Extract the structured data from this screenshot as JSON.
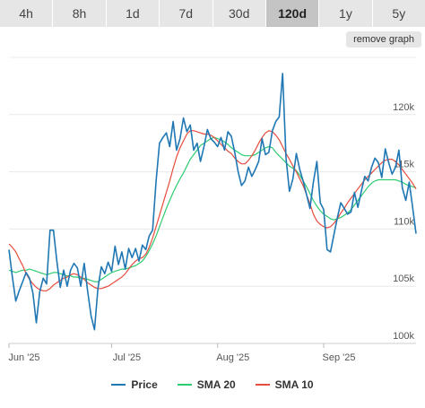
{
  "range_tabs": [
    {
      "label": "4h",
      "active": false
    },
    {
      "label": "8h",
      "active": false
    },
    {
      "label": "1d",
      "active": false
    },
    {
      "label": "7d",
      "active": false
    },
    {
      "label": "30d",
      "active": false
    },
    {
      "label": "120d",
      "active": true
    },
    {
      "label": "1y",
      "active": false
    },
    {
      "label": "5y",
      "active": false
    }
  ],
  "remove_graph_label": "remove graph",
  "legend": [
    {
      "label": "Price",
      "color": "#1f77b4"
    },
    {
      "label": "SMA 20",
      "color": "#2ecc71"
    },
    {
      "label": "SMA 10",
      "color": "#e74c3c"
    }
  ],
  "chart_data": {
    "type": "line",
    "x": [
      0,
      1,
      2,
      3,
      4,
      5,
      6,
      7,
      8,
      9,
      10,
      11,
      12,
      13,
      14,
      15,
      16,
      17,
      18,
      19,
      20,
      21,
      22,
      23,
      24,
      25,
      26,
      27,
      28,
      29,
      30,
      31,
      32,
      33,
      34,
      35,
      36,
      37,
      38,
      39,
      40,
      41,
      42,
      43,
      44,
      45,
      46,
      47,
      48,
      49,
      50,
      51,
      52,
      53,
      54,
      55,
      56,
      57,
      58,
      59,
      60,
      61,
      62,
      63,
      64,
      65,
      66,
      67,
      68,
      69,
      70,
      71,
      72,
      73,
      74,
      75,
      76,
      77,
      78,
      79,
      80,
      81,
      82,
      83,
      84,
      85,
      86,
      87,
      88,
      89,
      90,
      91,
      92,
      93,
      94,
      95,
      96,
      97,
      98,
      99,
      100,
      101,
      102,
      103,
      104,
      105,
      106,
      107,
      108,
      109,
      110,
      111,
      112,
      113,
      114,
      115,
      116,
      117,
      118,
      119
    ],
    "x_ticks": [
      {
        "x": 0,
        "label": "Jun '25"
      },
      {
        "x": 30,
        "label": "Jul '25"
      },
      {
        "x": 61,
        "label": "Aug '25"
      },
      {
        "x": 92,
        "label": "Sep '25"
      }
    ],
    "y_ticks": [
      {
        "value": 100000,
        "label": "100k"
      },
      {
        "value": 105000,
        "label": "105k"
      },
      {
        "value": 110000,
        "label": "110k"
      },
      {
        "value": 115000,
        "label": "115k"
      },
      {
        "value": 120000,
        "label": "120k"
      }
    ],
    "ylim": [
      100000,
      125000
    ],
    "xlim": [
      0,
      119
    ],
    "grid": true,
    "legend_position": "bottom",
    "series": [
      {
        "name": "Price",
        "color": "#1f77b4",
        "values": [
          108200,
          105800,
          103700,
          104600,
          105400,
          106200,
          105700,
          104400,
          101800,
          104500,
          105700,
          105200,
          109900,
          109900,
          107200,
          104900,
          106400,
          105000,
          106400,
          107000,
          106600,
          105000,
          107000,
          104600,
          102400,
          101200,
          104800,
          106700,
          106100,
          107100,
          106300,
          108500,
          106900,
          108000,
          106500,
          108300,
          107500,
          108300,
          107200,
          108600,
          108200,
          109400,
          109900,
          114200,
          117500,
          118000,
          118400,
          117200,
          119400,
          116900,
          117900,
          119700,
          118500,
          119100,
          116900,
          117500,
          115900,
          117200,
          118700,
          117900,
          117600,
          117200,
          118000,
          116900,
          118500,
          118100,
          116700,
          115000,
          113800,
          114200,
          115400,
          114600,
          115200,
          115900,
          117900,
          116500,
          116700,
          118600,
          119400,
          119800,
          123600,
          116200,
          113300,
          114400,
          116600,
          115200,
          114200,
          113000,
          111800,
          114100,
          115900,
          112300,
          111700,
          108200,
          108000,
          109500,
          111000,
          112300,
          111800,
          111300,
          111500,
          113200,
          111900,
          113300,
          114600,
          114200,
          115400,
          116200,
          115800,
          114500,
          117000,
          115800,
          114800,
          115400,
          116900,
          113600,
          112500,
          114100,
          111900,
          109600
        ]
      },
      {
        "name": "SMA 20",
        "color": "#2ecc71",
        "values": [
          106400,
          106300,
          106200,
          106300,
          106400,
          106400,
          106500,
          106400,
          106300,
          106200,
          106100,
          106000,
          106100,
          106200,
          106200,
          106100,
          106000,
          105900,
          105900,
          105800,
          105800,
          105700,
          105700,
          105600,
          105500,
          105400,
          105400,
          105600,
          105800,
          106000,
          106200,
          106300,
          106400,
          106500,
          106500,
          106600,
          106700,
          106800,
          107000,
          107200,
          107600,
          108100,
          108700,
          109400,
          110200,
          111000,
          111800,
          112500,
          113200,
          113800,
          114400,
          114900,
          115500,
          116100,
          116500,
          116900,
          117300,
          117500,
          117700,
          117900,
          118000,
          117900,
          117800,
          117600,
          117400,
          117100,
          116900,
          116700,
          116500,
          116400,
          116400,
          116400,
          116500,
          116700,
          116900,
          117100,
          117200,
          117100,
          116700,
          116400,
          116100,
          115800,
          115500,
          115300,
          115100,
          114700,
          114200,
          113700,
          113100,
          112500,
          112000,
          111600,
          111300,
          111100,
          110900,
          110800,
          110900,
          111000,
          111200,
          111400,
          111700,
          112100,
          112500,
          112900,
          113300,
          113700,
          114000,
          114200,
          114300,
          114300,
          114300,
          114300,
          114300,
          114300,
          114200,
          114100,
          113900,
          113800,
          113700,
          113600
        ]
      },
      {
        "name": "SMA 10",
        "color": "#e74c3c",
        "values": [
          108700,
          108400,
          108000,
          107400,
          106800,
          106100,
          105600,
          105200,
          104900,
          104700,
          104600,
          104600,
          104800,
          105100,
          105300,
          105500,
          105700,
          105800,
          106000,
          106100,
          106000,
          105800,
          105600,
          105300,
          105100,
          104900,
          104800,
          104800,
          104900,
          105000,
          105200,
          105400,
          105600,
          105800,
          106100,
          106500,
          106900,
          107200,
          107400,
          107500,
          107800,
          108400,
          109200,
          110200,
          111200,
          112200,
          113200,
          114200,
          115300,
          116300,
          117100,
          117700,
          118300,
          118600,
          118600,
          118500,
          118400,
          118300,
          118300,
          118200,
          118000,
          117700,
          117400,
          117100,
          116800,
          116600,
          116200,
          115900,
          115700,
          115700,
          116000,
          116400,
          116900,
          117500,
          118000,
          118400,
          118600,
          118500,
          118200,
          117800,
          117200,
          116600,
          116100,
          115500,
          115000,
          114400,
          113800,
          113000,
          112200,
          111300,
          110700,
          110400,
          110200,
          110100,
          110200,
          110500,
          110900,
          111400,
          111800,
          112300,
          112700,
          113100,
          113500,
          113900,
          114300,
          114600,
          114900,
          115200,
          115500,
          115800,
          116000,
          116100,
          116100,
          115900,
          115600,
          115200,
          114800,
          114400,
          114000,
          113500
        ]
      }
    ]
  }
}
